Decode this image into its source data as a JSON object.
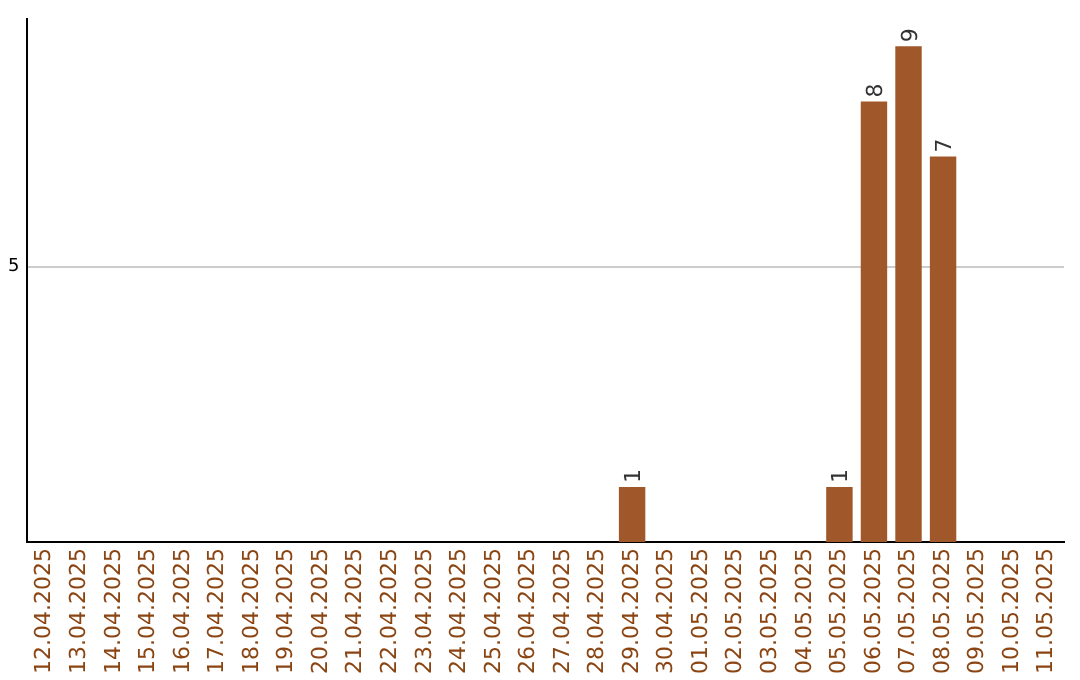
{
  "chart_data": {
    "type": "bar",
    "categories": [
      "12.04.2025",
      "13.04.2025",
      "14.04.2025",
      "15.04.2025",
      "16.04.2025",
      "17.04.2025",
      "18.04.2025",
      "19.04.2025",
      "20.04.2025",
      "21.04.2025",
      "22.04.2025",
      "23.04.2025",
      "24.04.2025",
      "25.04.2025",
      "26.04.2025",
      "27.04.2025",
      "28.04.2025",
      "29.04.2025",
      "30.04.2025",
      "01.05.2025",
      "02.05.2025",
      "03.05.2025",
      "04.05.2025",
      "05.05.2025",
      "06.05.2025",
      "07.05.2025",
      "08.05.2025",
      "09.05.2025",
      "10.05.2025",
      "11.05.2025"
    ],
    "values": [
      null,
      null,
      null,
      null,
      null,
      null,
      null,
      null,
      null,
      null,
      null,
      null,
      null,
      null,
      null,
      null,
      null,
      1,
      null,
      null,
      null,
      null,
      null,
      1,
      8,
      9,
      7,
      null,
      null,
      null
    ],
    "color": "#a0582a",
    "ylim": [
      0,
      9.5
    ],
    "yticks": [
      5
    ],
    "grid": "y",
    "data_labels": true,
    "legend": false
  }
}
